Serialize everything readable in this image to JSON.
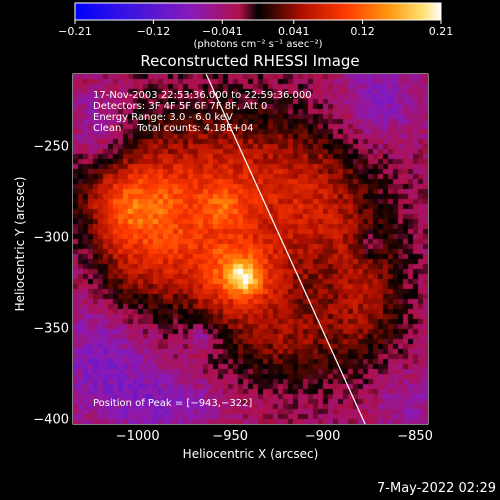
{
  "chart_data": {
    "type": "heatmap",
    "title": "Reconstructed RHESSI Image",
    "xlabel": "Heliocentric X (arcsec)",
    "ylabel": "Heliocentric Y (arcsec)",
    "xlim": [
      -1035,
      -843
    ],
    "ylim": [
      -402,
      -210
    ],
    "x_ticks": [
      -1000,
      -950,
      -900,
      -850
    ],
    "y_ticks": [
      -250,
      -300,
      -350,
      -400
    ],
    "x_tick_labels": [
      "−1000",
      "−950",
      "−900",
      "−850"
    ],
    "y_tick_labels": [
      "−250",
      "−300",
      "−350",
      "−400"
    ],
    "colorbar": {
      "min": -0.21,
      "max": 0.21,
      "ticks": [
        -0.21,
        -0.12,
        -0.041,
        0.041,
        0.12,
        0.21
      ],
      "tick_labels": [
        "−0.21",
        "−0.12",
        "−0.041",
        "0.041",
        "0.12",
        "0.21"
      ],
      "label": "(photons cm⁻² s⁻¹ asec⁻²)"
    },
    "peak": {
      "x": -943,
      "y": -322
    },
    "limb_line": [
      [
        -963,
        -210
      ],
      [
        -877,
        -402
      ]
    ],
    "info_lines": [
      "17-Nov-2003 22:53:36.000 to 22:59:36.000",
      "Detectors: 3F 4F 5F 6F 7F 8F, Att 0",
      "Energy Range: 3.0 - 6.0 keV",
      "Clean     Total counts: 4.18E+04"
    ],
    "peak_label": "Position of Peak = [−943,−322]",
    "blobs": [
      {
        "x": -960,
        "y": -262,
        "sx": 70,
        "sy": 45,
        "a": 0.065
      },
      {
        "x": -935,
        "y": -270,
        "sx": 40,
        "sy": 30,
        "a": 0.03
      },
      {
        "x": -1005,
        "y": -282,
        "sx": 28,
        "sy": 22,
        "a": 0.075
      },
      {
        "x": -985,
        "y": -300,
        "sx": 45,
        "sy": 40,
        "a": 0.07
      },
      {
        "x": -945,
        "y": -320,
        "sx": 25,
        "sy": 22,
        "a": 0.11
      },
      {
        "x": -943,
        "y": -322,
        "sx": 8,
        "sy": 8,
        "a": 0.09
      },
      {
        "x": -952,
        "y": -282,
        "sx": 12,
        "sy": 10,
        "a": 0.05
      },
      {
        "x": -900,
        "y": -290,
        "sx": 28,
        "sy": 38,
        "a": 0.06
      },
      {
        "x": -875,
        "y": -328,
        "sx": 22,
        "sy": 38,
        "a": 0.065
      },
      {
        "x": -920,
        "y": -355,
        "sx": 40,
        "sy": 28,
        "a": 0.07
      },
      {
        "x": -1000,
        "y": -320,
        "sx": 25,
        "sy": 25,
        "a": 0.03
      },
      {
        "x": -1022,
        "y": -240,
        "sx": 16,
        "sy": 22,
        "a": -0.05
      },
      {
        "x": -870,
        "y": -225,
        "sx": 22,
        "sy": 22,
        "a": -0.05
      },
      {
        "x": -1020,
        "y": -365,
        "sx": 25,
        "sy": 30,
        "a": -0.05
      },
      {
        "x": -985,
        "y": -390,
        "sx": 30,
        "sy": 18,
        "a": -0.045
      },
      {
        "x": -875,
        "y": -303,
        "sx": 7,
        "sy": 8,
        "a": -0.06
      },
      {
        "x": -965,
        "y": -355,
        "sx": 9,
        "sy": 9,
        "a": -0.05
      },
      {
        "x": -855,
        "y": -390,
        "sx": 18,
        "sy": 18,
        "a": -0.03
      },
      {
        "x": -1030,
        "y": -300,
        "sx": 10,
        "sy": 30,
        "a": -0.03
      }
    ]
  },
  "footer": {
    "date": "7-May-2022 02:29"
  }
}
